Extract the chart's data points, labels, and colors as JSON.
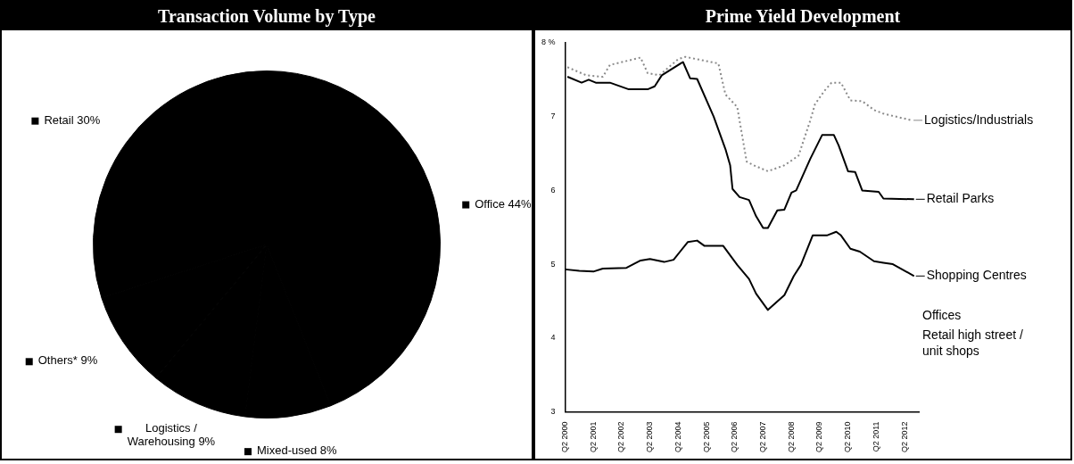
{
  "chart_data": [
    {
      "type": "pie",
      "title": "Transaction Volume by Type",
      "categories": [
        "Office",
        "Mixed-used",
        "Logistics / Warehousing",
        "Others*",
        "Retail"
      ],
      "values": [
        44,
        8,
        9,
        9,
        30
      ],
      "colors": [
        "#000000",
        "#000000",
        "#000000",
        "#000000",
        "#000000"
      ],
      "value_labels": [
        "44%",
        "8%",
        "9%",
        "9%",
        "30%"
      ],
      "legend": "left"
    },
    {
      "type": "line",
      "title": "Prime Yield Development",
      "xlim": [
        "2000-04",
        "2012-10"
      ],
      "xticks": [
        {
          "value": "2000-04",
          "label": "Q2 2000"
        },
        {
          "value": "2001-04",
          "label": "Q2 2001"
        },
        {
          "value": "2002-04",
          "label": "Q2 2002"
        },
        {
          "value": "2003-04",
          "label": "Q2 2003"
        },
        {
          "value": "2004-04",
          "label": "Q2 2004"
        },
        {
          "value": "2005-04",
          "label": "Q2 2005"
        },
        {
          "value": "2006-04",
          "label": "Q2 2006"
        },
        {
          "value": "2007-04",
          "label": "Q2 2007"
        },
        {
          "value": "2008-04",
          "label": "Q2 2008"
        },
        {
          "value": "2009-04",
          "label": "Q2 2009"
        },
        {
          "value": "2010-04",
          "label": "Q2 2010"
        },
        {
          "value": "2011-04",
          "label": "Q2 2011"
        },
        {
          "value": "2012-04",
          "label": "Q2 2012"
        }
      ],
      "ylim": [
        3,
        8
      ],
      "yticks": [
        3,
        4,
        5,
        6,
        7,
        {
          "value": 8,
          "label": "8 %"
        }
      ],
      "grid": false,
      "legend": "right",
      "marker": "none",
      "series": [
        {
          "name": "Logistics/Industrials",
          "color": "#8a8a8a",
          "line_style": "dotted",
          "x": [
            "2000-05",
            "2001-01",
            "2001-08",
            "2001-11",
            "2002-12",
            "2003-03",
            "2003-08",
            "2004-04",
            "2004-07",
            "2005-09",
            "2005-12",
            "2006-05",
            "2006-09",
            "2006-12",
            "2007-06",
            "2008-01",
            "2008-07",
            "2008-12",
            "2009-02",
            "2009-06",
            "2009-09",
            "2010-01",
            "2010-05",
            "2010-10",
            "2011-03",
            "2011-07",
            "2012-07"
          ],
          "values": [
            7.67,
            7.56,
            7.54,
            7.7,
            7.8,
            7.59,
            7.56,
            7.78,
            7.81,
            7.72,
            7.3,
            7.13,
            6.39,
            6.34,
            6.26,
            6.34,
            6.47,
            6.95,
            7.17,
            7.35,
            7.46,
            7.46,
            7.22,
            7.21,
            7.09,
            7.04,
            6.95
          ]
        },
        {
          "name": "Retail Parks",
          "color": "#000000",
          "line_style": "solid",
          "x": [
            "2000-05",
            "2000-11",
            "2001-02",
            "2001-05",
            "2001-11",
            "2002-07",
            "2003-03",
            "2003-06",
            "2003-09",
            "2004-06",
            "2004-09",
            "2004-12",
            "2005-07",
            "2005-12",
            "2006-02",
            "2006-03",
            "2006-06",
            "2006-10",
            "2007-01",
            "2007-04",
            "2007-06",
            "2007-10",
            "2008-01",
            "2008-04",
            "2008-06",
            "2008-12",
            "2009-05",
            "2009-10",
            "2009-12",
            "2010-04",
            "2010-07",
            "2010-10",
            "2011-05",
            "2011-07",
            "2012-08"
          ],
          "values": [
            7.54,
            7.46,
            7.5,
            7.46,
            7.46,
            7.37,
            7.37,
            7.41,
            7.56,
            7.74,
            7.52,
            7.51,
            7.0,
            6.56,
            6.34,
            6.02,
            5.91,
            5.87,
            5.65,
            5.49,
            5.49,
            5.73,
            5.74,
            5.97,
            6.0,
            6.43,
            6.75,
            6.75,
            6.61,
            6.26,
            6.25,
            6.0,
            5.98,
            5.89,
            5.88
          ]
        },
        {
          "name": "Shopping Centres",
          "color": "#000000",
          "line_style": "solid",
          "x": [
            "2000-04",
            "2000-10",
            "2001-04",
            "2001-08",
            "2002-06",
            "2002-12",
            "2003-04",
            "2003-10",
            "2004-02",
            "2004-08",
            "2004-12",
            "2005-03",
            "2005-11",
            "2006-05",
            "2006-10",
            "2007-01",
            "2007-06",
            "2008-01",
            "2008-05",
            "2008-08",
            "2009-01",
            "2009-07",
            "2009-11",
            "2010-01",
            "2010-05",
            "2010-09",
            "2011-03",
            "2011-07",
            "2011-11",
            "2012-08"
          ],
          "values": [
            4.93,
            4.91,
            4.9,
            4.94,
            4.95,
            5.05,
            5.07,
            5.03,
            5.06,
            5.3,
            5.32,
            5.25,
            5.25,
            4.99,
            4.8,
            4.6,
            4.38,
            4.58,
            4.84,
            4.99,
            5.39,
            5.39,
            5.44,
            5.39,
            5.21,
            5.17,
            5.04,
            5.02,
            5.0,
            4.84
          ]
        }
      ],
      "annotations": [
        "Offices",
        "Retail high street / unit shops"
      ]
    }
  ]
}
